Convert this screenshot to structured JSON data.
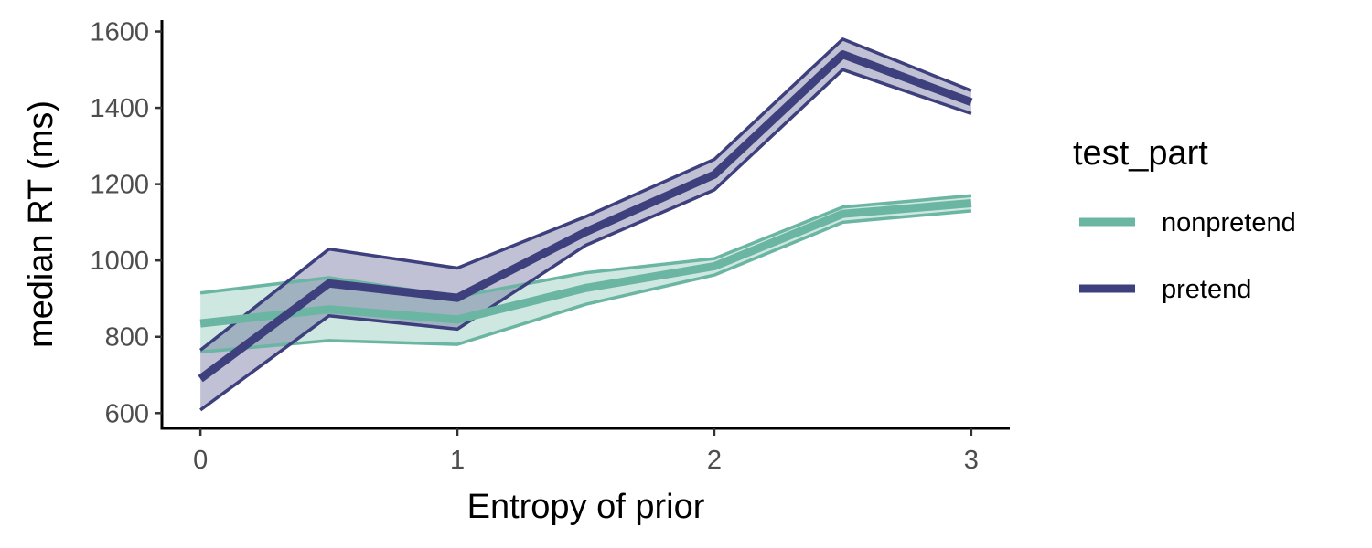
{
  "chart_data": {
    "type": "line",
    "title": "",
    "xlabel": "Entropy of prior",
    "ylabel": "median RT (ms)",
    "xlim": [
      -0.15,
      3.15
    ],
    "ylim": [
      560,
      1630
    ],
    "x_ticks": [
      0,
      1,
      2,
      3
    ],
    "x_tick_labels": [
      "0",
      "1",
      "2",
      "3"
    ],
    "y_ticks": [
      600,
      800,
      1000,
      1200,
      1400,
      1600
    ],
    "y_tick_labels": [
      "600",
      "800",
      "1000",
      "1200",
      "1400",
      "1600"
    ],
    "grid": false,
    "legend": {
      "title": "test_part",
      "position": "right"
    },
    "x": [
      0,
      0.5,
      1,
      1.5,
      2,
      2.5,
      3
    ],
    "series": [
      {
        "name": "nonpretend",
        "color": "#6bb5a3",
        "values": [
          835,
          872,
          845,
          928,
          985,
          1122,
          1150
        ],
        "lower": [
          760,
          790,
          780,
          885,
          962,
          1100,
          1130
        ],
        "upper": [
          915,
          955,
          905,
          968,
          1005,
          1140,
          1170
        ]
      },
      {
        "name": "pretend",
        "color": "#3e3f7d",
        "values": [
          690,
          940,
          902,
          1075,
          1225,
          1540,
          1415
        ],
        "lower": [
          608,
          855,
          820,
          1040,
          1185,
          1500,
          1385
        ],
        "upper": [
          765,
          1030,
          980,
          1115,
          1265,
          1580,
          1445
        ]
      }
    ]
  }
}
